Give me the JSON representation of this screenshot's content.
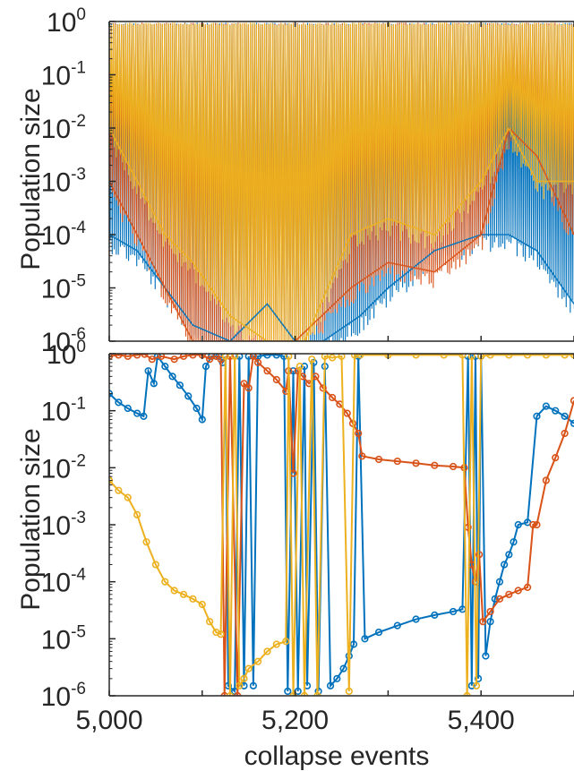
{
  "colors": {
    "blue": "#0072BD",
    "orange": "#D95319",
    "yellow": "#EDB120",
    "axis": "#262626"
  },
  "chart_data": [
    {
      "type": "line",
      "panel": "top",
      "ylabel": "Population size",
      "xlabel": "",
      "xlim": [
        5000,
        5500
      ],
      "ylim": [
        1e-06,
        1
      ],
      "yscale": "log",
      "grid": false,
      "markers": false,
      "xticks": [
        5000,
        5100,
        5200,
        5300,
        5400,
        5500
      ],
      "xticklabels": [],
      "yticks_exp": [
        "0",
        "-1",
        "-2",
        "-3",
        "-4",
        "-5",
        "-6"
      ],
      "ytick_base": "10",
      "note": "dense oscillations of three populations between ~1 and down to 1e-6",
      "series": [
        {
          "color": "blue",
          "baseline": [
            [
              5000,
              0.0001
            ],
            [
              5030,
              5e-05
            ],
            [
              5060,
              1e-05
            ],
            [
              5090,
              2e-06
            ],
            [
              5130,
              1e-06
            ],
            [
              5170,
              5e-06
            ],
            [
              5200,
              1e-06
            ],
            [
              5230,
              1e-06
            ],
            [
              5270,
              3e-06
            ],
            [
              5300,
              1e-05
            ],
            [
              5350,
              5e-05
            ],
            [
              5400,
              0.0001
            ],
            [
              5430,
              0.0001
            ],
            [
              5460,
              5e-05
            ],
            [
              5500,
              5e-06
            ]
          ]
        },
        {
          "color": "orange",
          "baseline": [
            [
              5000,
              0.001
            ],
            [
              5030,
              0.0001
            ],
            [
              5060,
              1e-05
            ],
            [
              5090,
              1e-06
            ],
            [
              5130,
              1e-06
            ],
            [
              5200,
              1e-06
            ],
            [
              5260,
              1e-05
            ],
            [
              5300,
              3e-05
            ],
            [
              5350,
              2e-05
            ],
            [
              5400,
              0.0001
            ],
            [
              5430,
              0.01
            ],
            [
              5460,
              0.003
            ],
            [
              5500,
              0.0001
            ]
          ]
        },
        {
          "color": "yellow",
          "baseline": [
            [
              5000,
              0.01
            ],
            [
              5030,
              0.001
            ],
            [
              5060,
              0.0001
            ],
            [
              5090,
              3e-05
            ],
            [
              5130,
              3e-06
            ],
            [
              5170,
              1e-06
            ],
            [
              5210,
              1e-06
            ],
            [
              5260,
              0.0001
            ],
            [
              5300,
              0.0002
            ],
            [
              5350,
              0.0001
            ],
            [
              5400,
              0.001
            ],
            [
              5430,
              0.01
            ],
            [
              5460,
              0.001
            ],
            [
              5500,
              0.001
            ]
          ]
        }
      ]
    },
    {
      "type": "line",
      "panel": "bottom",
      "ylabel": "Population size",
      "xlabel": "collapse events",
      "xlim": [
        5000,
        5500
      ],
      "ylim": [
        1e-06,
        1
      ],
      "yscale": "log",
      "grid": false,
      "markers": "circle",
      "xticks": [
        5000,
        5100,
        5200,
        5300,
        5400,
        5500
      ],
      "xticklabels": [
        "5,000",
        "",
        "5,200",
        "",
        "5,400",
        ""
      ],
      "yticks_exp": [
        "0",
        "-1",
        "-2",
        "-3",
        "-4",
        "-5",
        "-6"
      ],
      "ytick_base": "10",
      "series": [
        {
          "color": "blue",
          "points": [
            [
              5000,
              0.2
            ],
            [
              5010,
              0.14
            ],
            [
              5020,
              0.11
            ],
            [
              5030,
              0.09
            ],
            [
              5037,
              0.08
            ],
            [
              5042,
              0.5
            ],
            [
              5048,
              0.3
            ],
            [
              5052,
              0.9
            ],
            [
              5060,
              0.6
            ],
            [
              5068,
              0.4
            ],
            [
              5076,
              0.28
            ],
            [
              5085,
              0.18
            ],
            [
              5094,
              0.11
            ],
            [
              5100,
              0.07
            ],
            [
              5104,
              0.6
            ],
            [
              5110,
              0.9
            ],
            [
              5118,
              0.9
            ],
            [
              5122,
              0.7
            ],
            [
              5125,
              0.9
            ],
            [
              5128,
              1.5e-06
            ],
            [
              5135,
              1.2e-06
            ],
            [
              5140,
              0.9
            ],
            [
              5145,
              1.5e-06
            ],
            [
              5150,
              0.9
            ],
            [
              5155,
              1.5e-06
            ],
            [
              5160,
              0.9
            ],
            [
              5170,
              0.95
            ],
            [
              5180,
              0.95
            ],
            [
              5188,
              0.9
            ],
            [
              5192,
              1.2e-06
            ],
            [
              5198,
              0.5
            ],
            [
              5203,
              1.2e-06
            ],
            [
              5210,
              0.6
            ],
            [
              5213,
              1.5e-06
            ],
            [
              5220,
              0.7
            ],
            [
              5225,
              1.2e-06
            ],
            [
              5232,
              0.6
            ],
            [
              5238,
              1.5e-06
            ],
            [
              5245,
              2e-06
            ],
            [
              5252,
              3e-06
            ],
            [
              5258,
              5e-06
            ],
            [
              5263,
              8e-06
            ],
            [
              5268,
              0.9
            ],
            [
              5275,
              1e-05
            ],
            [
              5290,
              1.3e-05
            ],
            [
              5310,
              1.7e-05
            ],
            [
              5330,
              2.2e-05
            ],
            [
              5350,
              2.6e-05
            ],
            [
              5370,
              3e-05
            ],
            [
              5380,
              3.3e-05
            ],
            [
              5386,
              0.9
            ],
            [
              5390,
              1.5e-06
            ],
            [
              5394,
              0.9
            ],
            [
              5397,
              2e-06
            ],
            [
              5400,
              0.9
            ],
            [
              5405,
              5e-06
            ],
            [
              5410,
              2e-05
            ],
            [
              5415,
              5e-05
            ],
            [
              5420,
              0.0001
            ],
            [
              5425,
              0.0002
            ],
            [
              5430,
              0.0003
            ],
            [
              5435,
              0.0005
            ],
            [
              5440,
              0.001
            ],
            [
              5450,
              0.0011
            ],
            [
              5460,
              0.08
            ],
            [
              5470,
              0.12
            ],
            [
              5480,
              0.1
            ],
            [
              5490,
              0.08
            ],
            [
              5500,
              0.06
            ]
          ]
        },
        {
          "color": "orange",
          "points": [
            [
              5000,
              0.9
            ],
            [
              5010,
              0.95
            ],
            [
              5020,
              0.9
            ],
            [
              5030,
              0.95
            ],
            [
              5038,
              0.98
            ],
            [
              5046,
              0.8
            ],
            [
              5056,
              0.9
            ],
            [
              5070,
              0.8
            ],
            [
              5080,
              0.9
            ],
            [
              5090,
              0.95
            ],
            [
              5100,
              0.95
            ],
            [
              5108,
              0.8
            ],
            [
              5115,
              0.9
            ],
            [
              5120,
              0.8
            ],
            [
              5124,
              1e-06
            ],
            [
              5130,
              0.9
            ],
            [
              5138,
              1e-06
            ],
            [
              5145,
              0.3
            ],
            [
              5150,
              0.25
            ],
            [
              5155,
              0.9
            ],
            [
              5160,
              0.7
            ],
            [
              5170,
              0.5
            ],
            [
              5180,
              0.35
            ],
            [
              5190,
              0.22
            ],
            [
              5193,
              0.5
            ],
            [
              5198,
              0.008
            ],
            [
              5203,
              0.5
            ],
            [
              5208,
              0.4
            ],
            [
              5215,
              0.3
            ],
            [
              5222,
              0.4
            ],
            [
              5230,
              0.25
            ],
            [
              5240,
              0.17
            ],
            [
              5248,
              0.13
            ],
            [
              5256,
              0.09
            ],
            [
              5262,
              0.06
            ],
            [
              5268,
              0.04
            ],
            [
              5272,
              0.016
            ],
            [
              5290,
              0.014
            ],
            [
              5310,
              0.013
            ],
            [
              5330,
              0.012
            ],
            [
              5350,
              0.011
            ],
            [
              5370,
              0.0105
            ],
            [
              5382,
              0.01
            ],
            [
              5386,
              0.0009
            ],
            [
              5390,
              0.0002
            ],
            [
              5394,
              0.0001
            ],
            [
              5398,
              0.0003
            ],
            [
              5402,
              2e-05
            ],
            [
              5410,
              3e-05
            ],
            [
              5420,
              5e-05
            ],
            [
              5430,
              6e-05
            ],
            [
              5440,
              7e-05
            ],
            [
              5450,
              8e-05
            ],
            [
              5456,
              0.001
            ],
            [
              5460,
              0.001
            ],
            [
              5470,
              0.006
            ],
            [
              5480,
              0.015
            ],
            [
              5490,
              0.04
            ],
            [
              5500,
              0.15
            ]
          ]
        },
        {
          "color": "yellow",
          "points": [
            [
              5000,
              0.006
            ],
            [
              5010,
              0.004
            ],
            [
              5020,
              0.003
            ],
            [
              5030,
              0.0015
            ],
            [
              5040,
              0.0005
            ],
            [
              5050,
              0.0002
            ],
            [
              5060,
              0.0001
            ],
            [
              5070,
              7e-05
            ],
            [
              5080,
              6e-05
            ],
            [
              5090,
              5e-05
            ],
            [
              5100,
              4e-05
            ],
            [
              5108,
              2e-05
            ],
            [
              5115,
              1.3e-05
            ],
            [
              5120,
              1.2e-05
            ],
            [
              5125,
              0.9
            ],
            [
              5130,
              1e-06
            ],
            [
              5135,
              0.9
            ],
            [
              5140,
              1.5e-06
            ],
            [
              5145,
              2e-06
            ],
            [
              5150,
              3e-06
            ],
            [
              5160,
              4e-06
            ],
            [
              5170,
              6e-06
            ],
            [
              5180,
              8e-06
            ],
            [
              5190,
              9e-06
            ],
            [
              5193,
              0.9
            ],
            [
              5198,
              1e-06
            ],
            [
              5205,
              0.6
            ],
            [
              5210,
              1e-06
            ],
            [
              5218,
              0.8
            ],
            [
              5224,
              1e-06
            ],
            [
              5232,
              0.9
            ],
            [
              5240,
              0.85
            ],
            [
              5250,
              0.9
            ],
            [
              5258,
              1.2e-06
            ],
            [
              5264,
              0.95
            ],
            [
              5270,
              0.95
            ],
            [
              5300,
              0.95
            ],
            [
              5330,
              0.95
            ],
            [
              5360,
              0.95
            ],
            [
              5380,
              0.95
            ],
            [
              5385,
              1e-06
            ],
            [
              5390,
              0.9
            ],
            [
              5395,
              1.5e-06
            ],
            [
              5400,
              0.9
            ],
            [
              5410,
              0.95
            ],
            [
              5430,
              0.95
            ],
            [
              5450,
              0.95
            ],
            [
              5470,
              0.95
            ],
            [
              5490,
              0.95
            ],
            [
              5500,
              0.95
            ]
          ]
        }
      ]
    }
  ]
}
